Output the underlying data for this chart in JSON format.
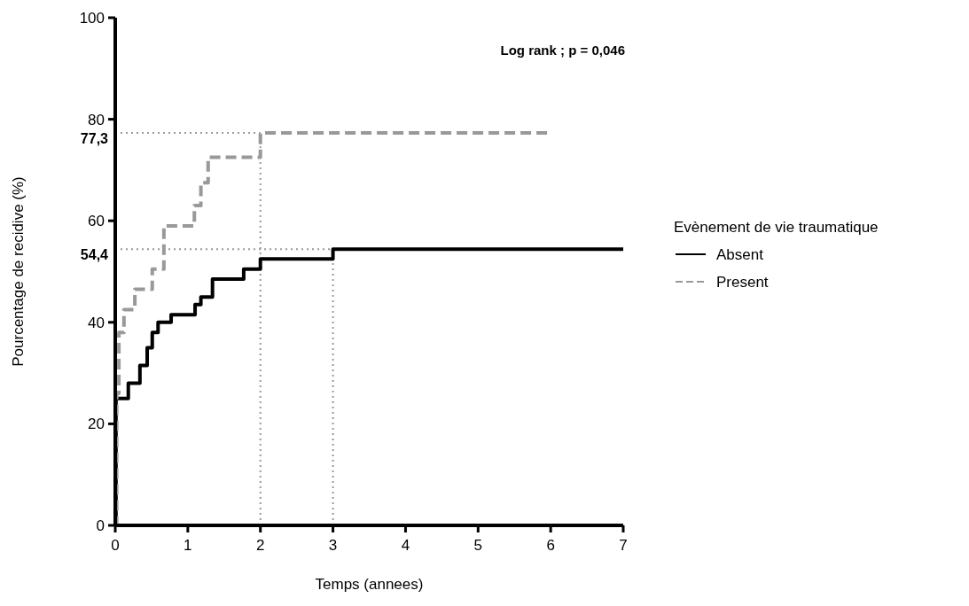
{
  "chart_data": {
    "type": "step",
    "xlabel": "Temps (annees)",
    "ylabel": "Pourcentage de recidive (%)",
    "legend_title": "Evènement de vie traumatique",
    "legend": "right",
    "xlim": [
      0,
      7
    ],
    "ylim": [
      0,
      100
    ],
    "xticks": [
      0,
      1,
      2,
      3,
      4,
      5,
      6,
      7
    ],
    "yticks": [
      0,
      20,
      40,
      60,
      80,
      100
    ],
    "grid": false,
    "series": [
      {
        "name": "Absent",
        "color": "#000000",
        "line_style": "solid",
        "x": [
          0,
          0.01,
          0.18,
          0.34,
          0.44,
          0.51,
          0.59,
          0.77,
          1.1,
          1.18,
          1.34,
          1.77,
          2,
          3,
          7
        ],
        "values": [
          0,
          25,
          28,
          31.5,
          35,
          38,
          40,
          41.5,
          43.5,
          45,
          48.5,
          50.5,
          52.5,
          54.4,
          54.4
        ]
      },
      {
        "name": "Present",
        "color": "#999999",
        "line_style": "dashed",
        "x": [
          0,
          0.02,
          0.05,
          0.12,
          0.27,
          0.51,
          0.67,
          1.09,
          1.18,
          1.28,
          2,
          6
        ],
        "values": [
          0,
          26,
          38,
          42.5,
          46.5,
          50.5,
          59,
          63,
          67.5,
          72.5,
          77.3,
          77.3
        ]
      }
    ],
    "ref_lines": [
      {
        "axis": "y",
        "value": 77.3,
        "label": "77,3",
        "color": "#999999",
        "line_style": "dotted"
      },
      {
        "axis": "y",
        "value": 54.4,
        "label": "54,4",
        "color": "#999999",
        "line_style": "dotted"
      },
      {
        "axis": "x",
        "value": 2,
        "color": "#999999",
        "line_style": "dotted"
      },
      {
        "axis": "x",
        "value": 3,
        "color": "#999999",
        "line_style": "dotted"
      }
    ],
    "annotations": [
      "Log rank ; p = 0,046"
    ]
  }
}
